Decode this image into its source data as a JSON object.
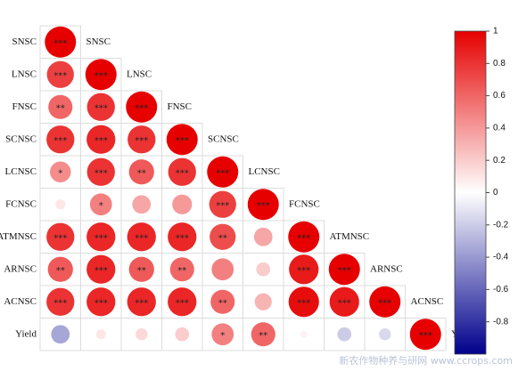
{
  "chart_data": {
    "type": "correlation",
    "variables": [
      "SNSC",
      "LNSC",
      "FNSC",
      "SCNSC",
      "LCNSC",
      "FCNSC",
      "ATMNSC",
      "ARNSC",
      "ACNSC",
      "Yield"
    ],
    "matrix": [
      [
        1
      ],
      [
        0.75,
        1
      ],
      [
        0.6,
        0.8,
        1
      ],
      [
        0.8,
        0.85,
        0.8,
        1
      ],
      [
        0.45,
        0.8,
        0.65,
        0.8,
        1
      ],
      [
        0.1,
        0.5,
        0.35,
        0.4,
        0.75,
        1
      ],
      [
        0.8,
        0.85,
        0.85,
        0.85,
        0.7,
        0.35,
        1
      ],
      [
        0.65,
        0.85,
        0.65,
        0.6,
        0.5,
        0.2,
        0.9,
        1
      ],
      [
        0.8,
        0.85,
        0.85,
        0.85,
        0.6,
        0.3,
        0.95,
        0.9,
        1
      ],
      [
        -0.35,
        0.1,
        0.15,
        0.2,
        0.5,
        0.6,
        0.05,
        -0.2,
        -0.15,
        1
      ]
    ],
    "stars": [
      [
        "***"
      ],
      [
        "***",
        "***"
      ],
      [
        "**",
        "***",
        "***"
      ],
      [
        "***",
        "***",
        "***",
        "***"
      ],
      [
        "*",
        "***",
        "**",
        "***",
        "***"
      ],
      [
        null,
        "*",
        null,
        null,
        "***",
        "***"
      ],
      [
        "***",
        "***",
        "***",
        "***",
        "**",
        null,
        "***"
      ],
      [
        "**",
        "***",
        "**",
        "**",
        null,
        null,
        "***",
        "***"
      ],
      [
        "***",
        "***",
        "***",
        "***",
        "**",
        null,
        "***",
        "***",
        "***"
      ],
      [
        null,
        null,
        null,
        null,
        "*",
        "**",
        null,
        null,
        null,
        "***"
      ]
    ],
    "colorbar": {
      "lim": [
        -1,
        1
      ],
      "ticks": [
        1,
        0.8,
        0.6,
        0.4,
        0.2,
        0,
        -0.2,
        -0.4,
        -0.6,
        -0.8
      ],
      "colors": {
        "positive": "#e60000",
        "zero": "#ffffff",
        "negative": "#00008c"
      }
    },
    "watermark": "新农作物种养与研网 www.ccrops.com"
  }
}
